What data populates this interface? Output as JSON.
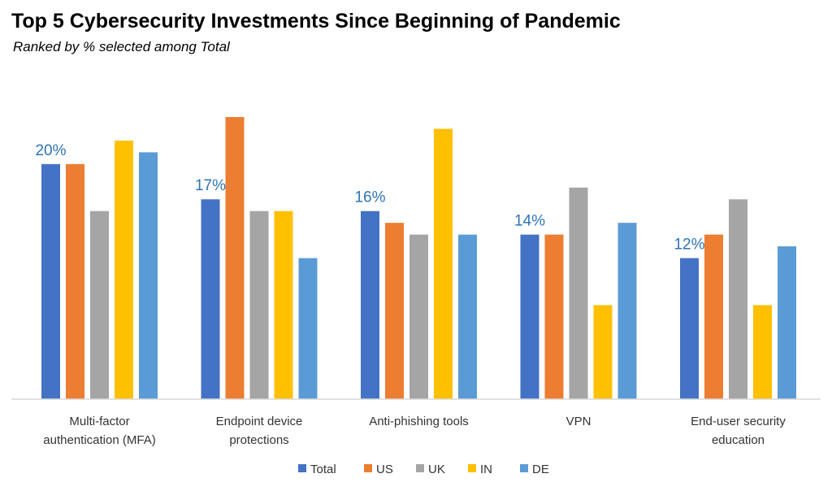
{
  "header": {
    "title": "Top 5 Cybersecurity Investments Since Beginning of Pandemic",
    "subtitle": "Ranked by % selected among Total"
  },
  "colors": {
    "Total": "#4472c4",
    "US": "#ed7d31",
    "UK": "#a5a5a5",
    "IN": "#ffc000",
    "DE": "#5b9bd5",
    "axis": "#d9d9d9",
    "data_label": "#2e74b5"
  },
  "chart_data": {
    "type": "bar",
    "title": "Top 5 Cybersecurity Investments Since Beginning of Pandemic",
    "subtitle": "Ranked by % selected among Total",
    "xlabel": "",
    "ylabel": "",
    "ylim": [
      0,
      24
    ],
    "grid": false,
    "legend_position": "bottom",
    "categories": [
      [
        "Multi-factor",
        "authentication (MFA)"
      ],
      [
        "Endpoint device",
        "protections"
      ],
      [
        "Anti-phishing tools"
      ],
      [
        "VPN"
      ],
      [
        "End-user security",
        "education"
      ]
    ],
    "series": [
      {
        "name": "Total",
        "values": [
          20,
          17,
          16,
          14,
          12
        ]
      },
      {
        "name": "US",
        "values": [
          20,
          24,
          15,
          14,
          14
        ]
      },
      {
        "name": "UK",
        "values": [
          16,
          16,
          14,
          18,
          17
        ]
      },
      {
        "name": "IN",
        "values": [
          22,
          16,
          23,
          8,
          8
        ]
      },
      {
        "name": "DE",
        "values": [
          21,
          12,
          14,
          15,
          13
        ]
      }
    ],
    "data_labels": [
      "20%",
      "17%",
      "16%",
      "14%",
      "12%"
    ]
  }
}
